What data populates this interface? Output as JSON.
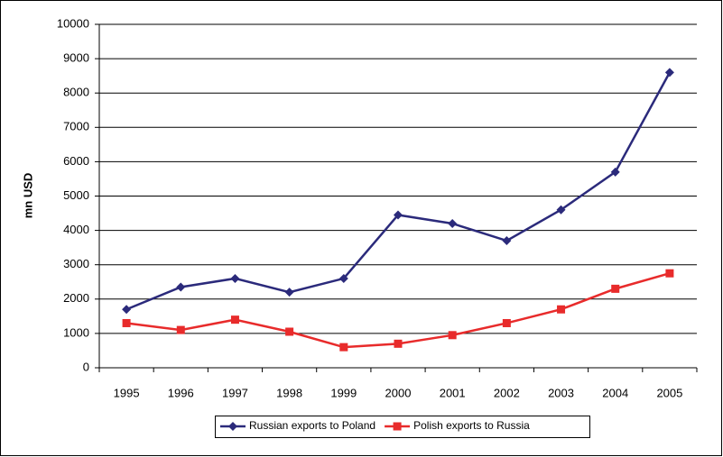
{
  "chart_data": {
    "type": "line",
    "y_label": "mn USD",
    "categories": [
      "1995",
      "1996",
      "1997",
      "1998",
      "1999",
      "2000",
      "2001",
      "2002",
      "2003",
      "2004",
      "2005"
    ],
    "series": [
      {
        "name": "Russian exports to Poland",
        "color": "#2b2a7b",
        "marker": "diamond",
        "values": [
          1700,
          2350,
          2600,
          2200,
          2600,
          4450,
          4200,
          3700,
          4600,
          5700,
          8600
        ]
      },
      {
        "name": "Polish exports to Russia",
        "color": "#e82b2b",
        "marker": "square",
        "values": [
          1300,
          1100,
          1400,
          1050,
          600,
          700,
          950,
          1300,
          1700,
          2300,
          2750
        ]
      }
    ],
    "ylim": [
      0,
      10000
    ],
    "yticks": [
      0,
      1000,
      2000,
      3000,
      4000,
      5000,
      6000,
      7000,
      8000,
      9000,
      10000
    ],
    "grid": true,
    "legend": "bottom"
  }
}
